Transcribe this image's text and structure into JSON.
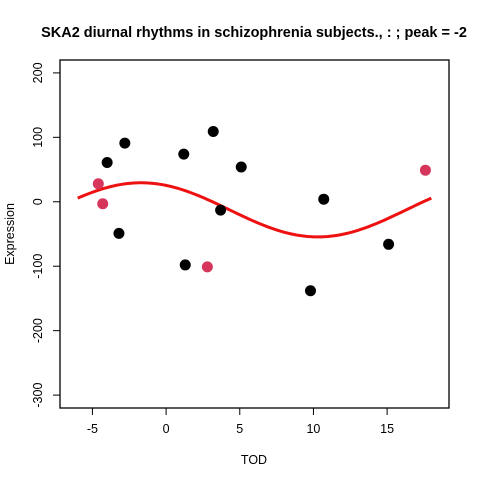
{
  "chart_data": {
    "type": "scatter",
    "title": "SKA2 diurnal rhythms in schizophrenia subjects., : ; peak = -2",
    "xlabel": "TOD",
    "ylabel": "Expression",
    "xlim": [
      -7.2,
      19.2
    ],
    "ylim": [
      -320,
      220
    ],
    "x_ticks": [
      -5,
      0,
      5,
      10,
      15
    ],
    "y_ticks": [
      -300,
      -200,
      -100,
      0,
      100,
      200
    ],
    "grid": false,
    "legend": "none",
    "colors": {
      "black_points": "#000000",
      "red_points": "#d6365c",
      "fit_curve": "#ee1111"
    },
    "series": [
      {
        "color": "black",
        "points": [
          {
            "x": -4.0,
            "y": 61
          },
          {
            "x": -2.8,
            "y": 91
          },
          {
            "x": -3.2,
            "y": -49
          },
          {
            "x": 1.2,
            "y": 74
          },
          {
            "x": 1.3,
            "y": -98
          },
          {
            "x": 3.2,
            "y": 109
          },
          {
            "x": 3.7,
            "y": -13
          },
          {
            "x": 5.1,
            "y": 54
          },
          {
            "x": 9.8,
            "y": -138
          },
          {
            "x": 10.7,
            "y": 4
          },
          {
            "x": 15.1,
            "y": -66
          }
        ]
      },
      {
        "color": "red",
        "points": [
          {
            "x": -4.6,
            "y": 28
          },
          {
            "x": -4.3,
            "y": -3
          },
          {
            "x": 2.8,
            "y": -101
          },
          {
            "x": 17.6,
            "y": 49
          }
        ]
      }
    ],
    "fit_curve": {
      "type": "cosinor",
      "period": 24,
      "mesor": -12.5,
      "amplitude": 42,
      "peak": -1.7,
      "x_range": [
        -6,
        18
      ]
    }
  }
}
